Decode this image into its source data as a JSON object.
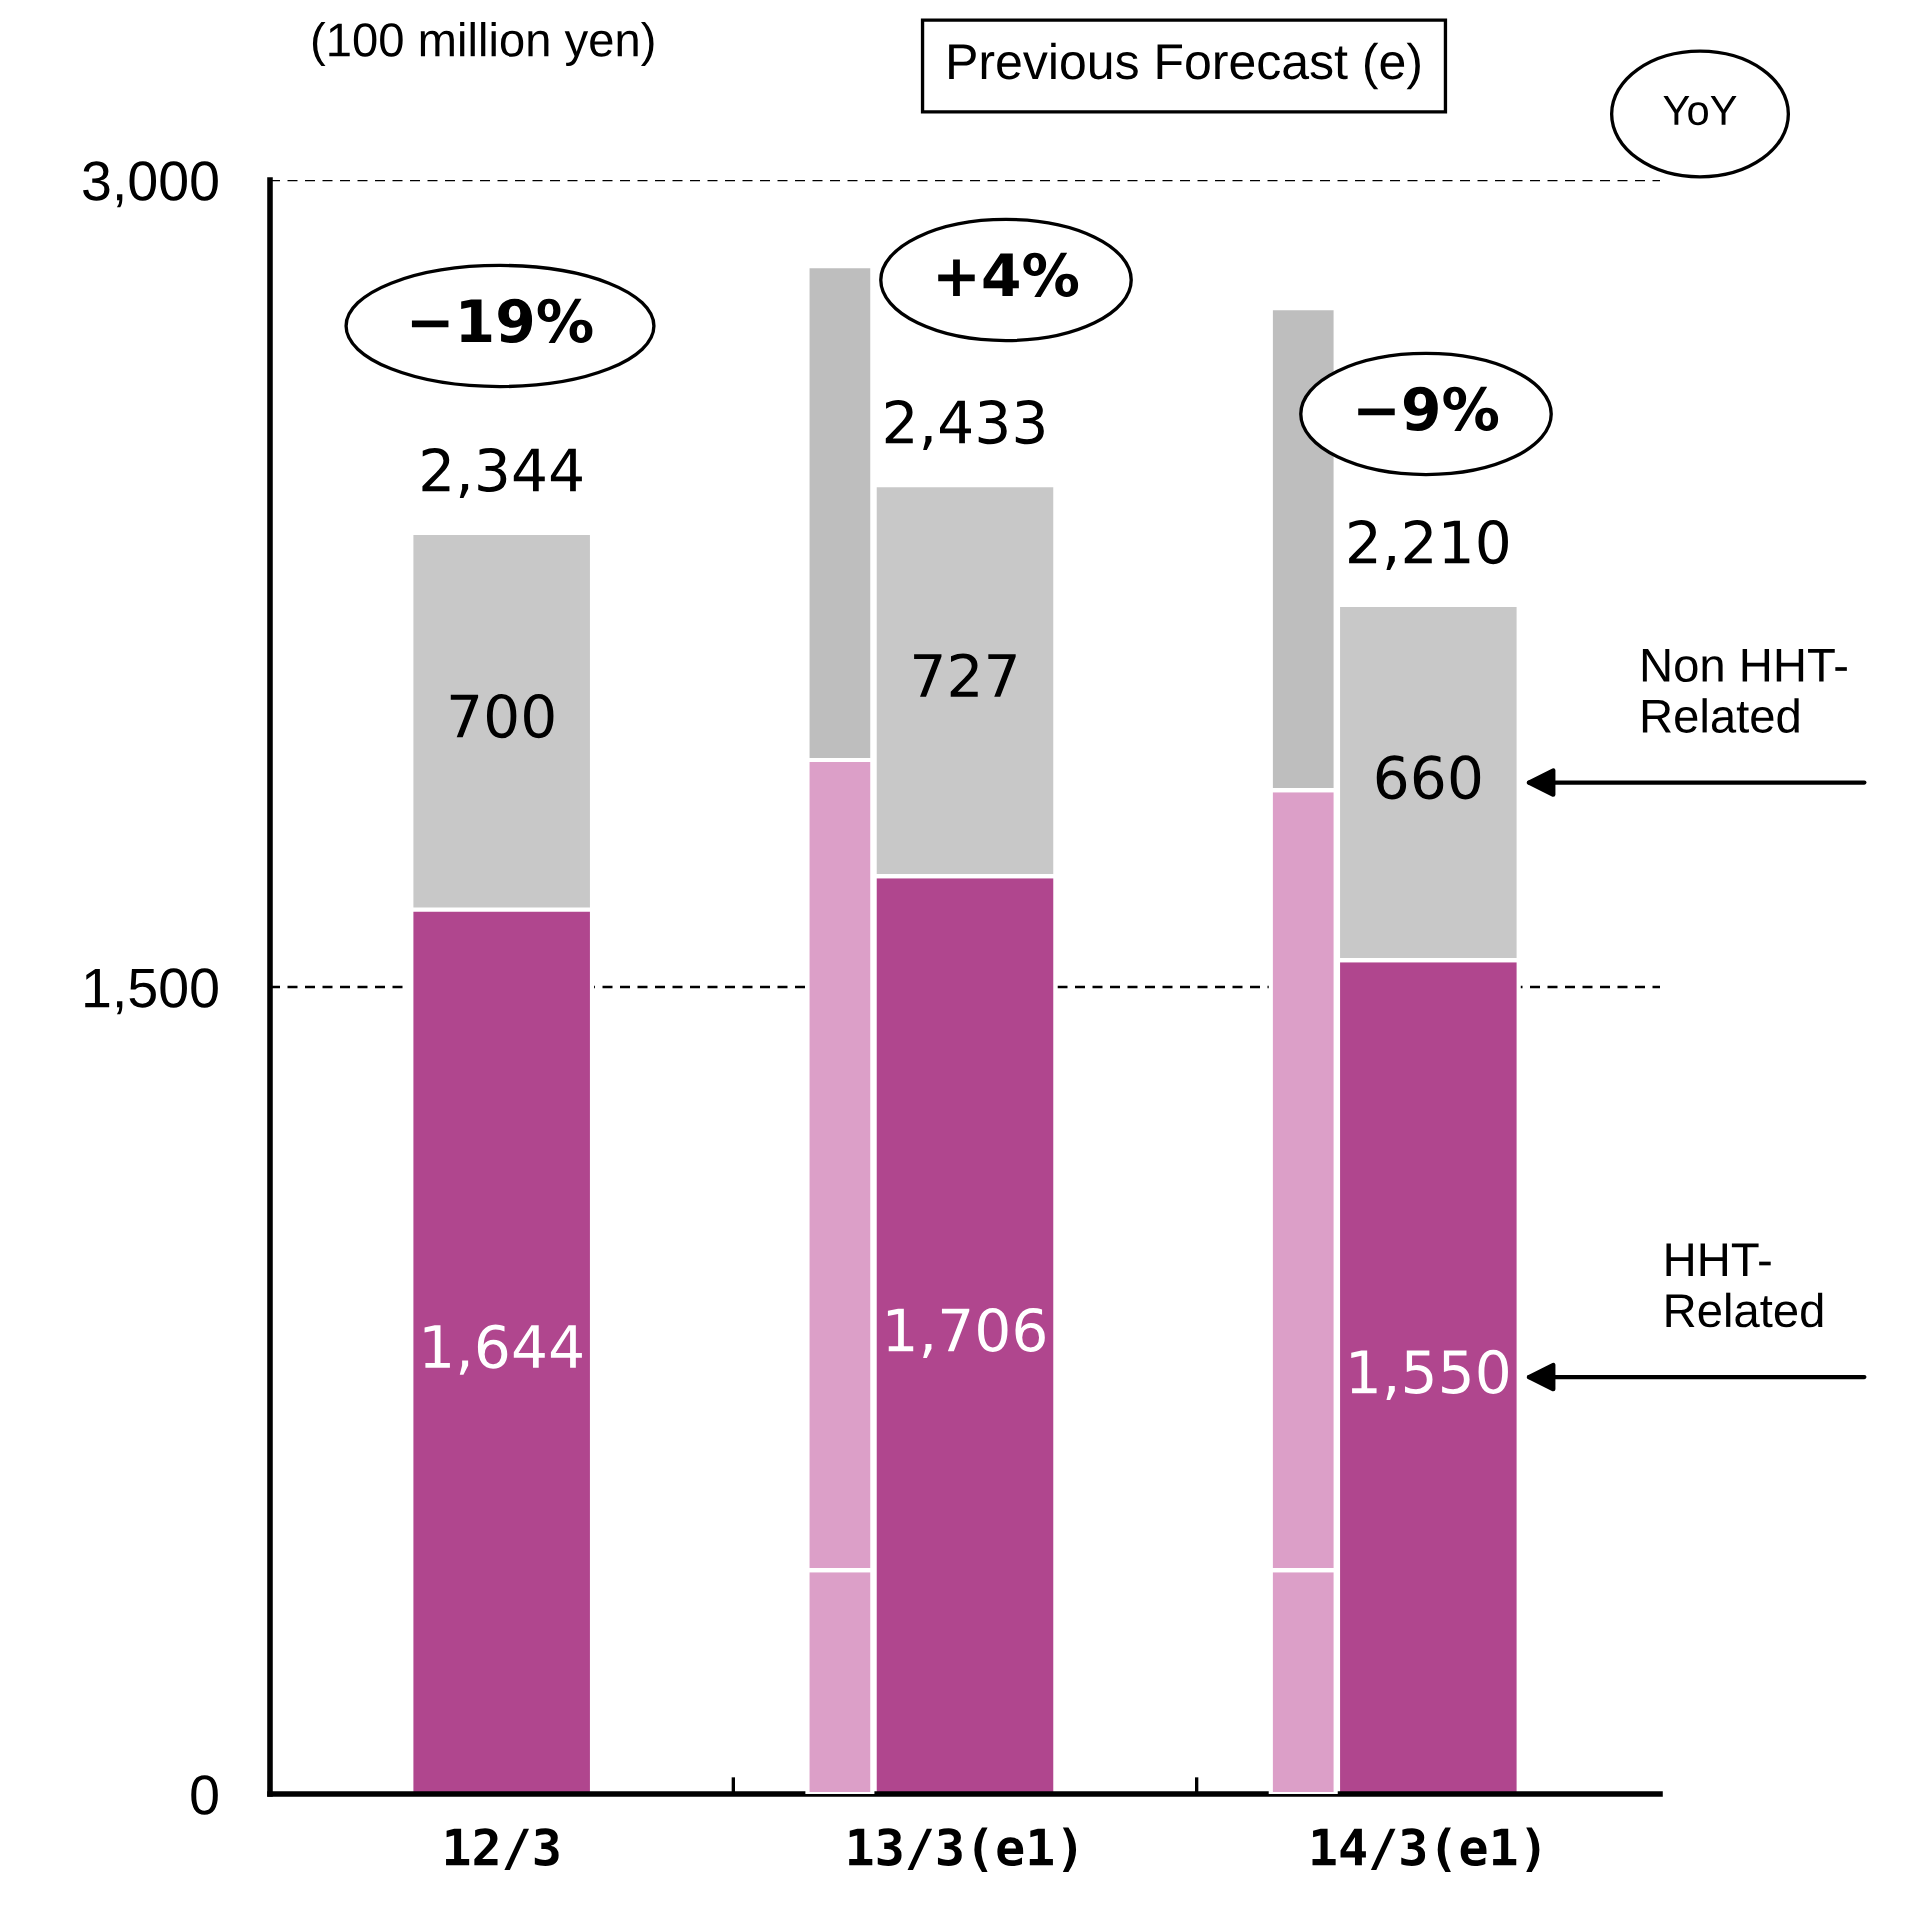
{
  "chart_data": [
    {
      "type": "bar",
      "stacked": true,
      "categories": [
        "12/3",
        "13/3(e1)",
        "14/3(e1)"
      ],
      "series": [
        {
          "name": "HHT-\nRelated",
          "color": "#b0468e",
          "values": [
            1644,
            1706,
            1550
          ],
          "value_labels": [
            "1,644",
            "1,706",
            "1,550"
          ]
        },
        {
          "name": "Non HHT-\nRelated",
          "color": "#c8c8c8",
          "values": [
            700,
            727,
            660
          ],
          "value_labels": [
            "700",
            "727",
            "660"
          ]
        }
      ],
      "totals": [
        "2,344",
        "2,433",
        "2,210"
      ],
      "ylim": [
        0,
        3000
      ],
      "yticks": [
        {
          "value": 0,
          "label": "0"
        },
        {
          "value": 1500,
          "label": "1,500"
        },
        {
          "value": 3000,
          "label": "3,000"
        }
      ],
      "grid": "y",
      "legend": "right",
      "annotations": [
        "(100 million yen)",
        "YoY",
        "−19%",
        "+4%",
        "−9%"
      ]
    },
    {
      "type": "bar",
      "stacked": true,
      "categories": [
        "12/3",
        "13/3(e1)",
        "14/3(e1)"
      ],
      "tick_labels": false,
      "series": [
        {
          "color": "#dc9fc8",
          "values": [
            null,
            416,
            416
          ]
        },
        {
          "color": "#dc9fc8",
          "values": [
            null,
            1506,
            1450
          ]
        },
        {
          "color": "#bebebe",
          "values": [
            null,
            918,
            896
          ]
        }
      ],
      "ylim": [
        0,
        3000
      ],
      "annotations": [
        "Previous Forecast (e)"
      ]
    }
  ]
}
